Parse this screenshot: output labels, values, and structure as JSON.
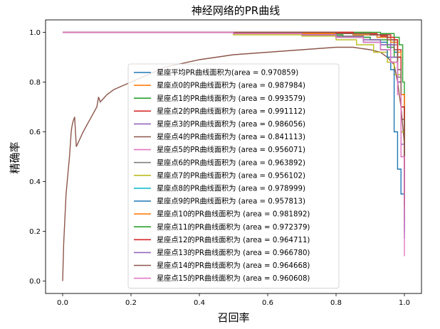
{
  "chart_data": {
    "type": "line",
    "title": "神经网络的PR曲线",
    "xlabel": "召回率",
    "ylabel": "精确率",
    "xlim": [
      -0.05,
      1.05
    ],
    "ylim": [
      -0.05,
      1.05
    ],
    "xticks": [
      "0.0",
      "0.2",
      "0.4",
      "0.6",
      "0.8",
      "1.0"
    ],
    "yticks": [
      "0.0",
      "0.2",
      "0.4",
      "0.6",
      "0.8",
      "1.0"
    ],
    "grid": false,
    "legend_position": "center",
    "series": [
      {
        "name": "星座平均PR曲线面积为(area = 0.970859)",
        "color": "#1f77b4",
        "x": [
          0,
          0.02,
          0.1,
          0.3,
          0.5,
          0.6,
          0.7,
          0.8,
          0.85,
          0.9,
          0.93,
          0.95,
          0.97,
          0.98,
          0.99,
          1.0
        ],
        "y": [
          1.0,
          1.0,
          1.0,
          1.0,
          1.0,
          0.995,
          0.99,
          0.985,
          0.98,
          0.97,
          0.96,
          0.95,
          0.92,
          0.8,
          0.6,
          0.17
        ]
      },
      {
        "name": "星座点0的PR曲线面积为 (area = 0.987984)",
        "color": "#ff7f0e",
        "x": [
          0,
          0.05,
          0.2,
          0.4,
          0.6,
          0.8,
          0.9,
          0.95,
          0.97,
          0.98,
          0.99,
          1.0
        ],
        "y": [
          1.0,
          1.0,
          1.0,
          1.0,
          1.0,
          1.0,
          0.99,
          0.98,
          0.96,
          0.9,
          0.7,
          0.3
        ]
      },
      {
        "name": "星座点1的PR曲线面积为 (area = 0.993579)",
        "color": "#2ca02c",
        "x": [
          0,
          0.1,
          0.3,
          0.5,
          0.7,
          0.85,
          0.93,
          0.97,
          0.985,
          0.995,
          1.0
        ],
        "y": [
          1.0,
          1.0,
          1.0,
          1.0,
          1.0,
          1.0,
          0.995,
          0.98,
          0.95,
          0.8,
          0.4
        ]
      },
      {
        "name": "星座点2的PR曲线面积为 (area = 0.991112)",
        "color": "#d62728",
        "x": [
          0,
          0.1,
          0.3,
          0.5,
          0.7,
          0.85,
          0.92,
          0.96,
          0.98,
          0.99,
          1.0
        ],
        "y": [
          1.0,
          1.0,
          1.0,
          1.0,
          1.0,
          0.995,
          0.99,
          0.97,
          0.93,
          0.75,
          0.35
        ]
      },
      {
        "name": "星座点3的PR曲线面积为 (area = 0.986056)",
        "color": "#9467bd",
        "x": [
          0,
          0.1,
          0.3,
          0.5,
          0.7,
          0.85,
          0.92,
          0.96,
          0.98,
          0.99,
          1.0
        ],
        "y": [
          1.0,
          1.0,
          1.0,
          1.0,
          0.995,
          0.99,
          0.98,
          0.95,
          0.9,
          0.7,
          0.3
        ]
      },
      {
        "name": "星座点4的PR曲线面积为 (area = 0.841113)",
        "color": "#8c564b",
        "x": [
          0,
          0.003,
          0.01,
          0.02,
          0.025,
          0.027,
          0.03,
          0.035,
          0.04,
          0.06,
          0.1,
          0.105,
          0.11,
          0.13,
          0.15,
          0.2,
          0.25,
          0.3,
          0.4,
          0.5,
          0.6,
          0.7,
          0.8,
          0.85,
          0.9,
          0.93,
          0.95,
          0.97,
          0.98,
          0.99,
          1.0
        ],
        "y": [
          0.0,
          0.15,
          0.35,
          0.5,
          0.6,
          0.62,
          0.64,
          0.66,
          0.54,
          0.6,
          0.7,
          0.74,
          0.72,
          0.75,
          0.77,
          0.8,
          0.83,
          0.86,
          0.89,
          0.91,
          0.92,
          0.93,
          0.94,
          0.94,
          0.93,
          0.92,
          0.9,
          0.87,
          0.8,
          0.7,
          0.55
        ]
      },
      {
        "name": "星座点5的PR曲线面积为 (area = 0.956071)",
        "color": "#e377c2",
        "x": [
          0,
          0.1,
          0.3,
          0.5,
          0.7,
          0.8,
          0.88,
          0.93,
          0.96,
          0.98,
          0.99,
          1.0
        ],
        "y": [
          1.0,
          1.0,
          1.0,
          0.995,
          0.99,
          0.98,
          0.96,
          0.93,
          0.88,
          0.8,
          0.5,
          0.1
        ]
      },
      {
        "name": "星座点6的PR曲线面积为 (area = 0.963892)",
        "color": "#7f7f7f",
        "x": [
          0,
          0.1,
          0.3,
          0.5,
          0.7,
          0.8,
          0.88,
          0.93,
          0.96,
          0.98,
          0.99,
          1.0
        ],
        "y": [
          1.0,
          1.0,
          1.0,
          0.995,
          0.99,
          0.985,
          0.97,
          0.95,
          0.9,
          0.82,
          0.6,
          0.25
        ]
      },
      {
        "name": "星座点7的PR曲线面积为 (area = 0.956102)",
        "color": "#bcbd22",
        "x": [
          0,
          0.1,
          0.3,
          0.5,
          0.7,
          0.8,
          0.86,
          0.91,
          0.95,
          0.97,
          0.99,
          1.0
        ],
        "y": [
          1.0,
          1.0,
          1.0,
          0.99,
          0.985,
          0.97,
          0.95,
          0.92,
          0.88,
          0.83,
          0.6,
          0.25
        ]
      },
      {
        "name": "星座点8的PR曲线面积为 (area = 0.978999)",
        "color": "#17becf",
        "x": [
          0,
          0.1,
          0.3,
          0.5,
          0.7,
          0.85,
          0.92,
          0.96,
          0.98,
          0.99,
          1.0
        ],
        "y": [
          1.0,
          1.0,
          1.0,
          1.0,
          0.995,
          0.99,
          0.98,
          0.96,
          0.9,
          0.7,
          0.3
        ]
      },
      {
        "name": "星座点9的PR曲线面积为 (area = 0.957813)",
        "color": "#1f77b4",
        "x": [
          0,
          0.1,
          0.3,
          0.5,
          0.7,
          0.8,
          0.88,
          0.93,
          0.95,
          0.96,
          0.97,
          0.98,
          0.99,
          1.0
        ],
        "y": [
          1.0,
          1.0,
          1.0,
          0.995,
          0.99,
          0.98,
          0.96,
          0.93,
          0.9,
          0.85,
          0.6,
          0.45,
          0.35,
          0.2
        ]
      },
      {
        "name": "星座点10的PR曲线面积为 (area = 0.981892)",
        "color": "#ff7f0e",
        "x": [
          0,
          0.1,
          0.3,
          0.5,
          0.7,
          0.85,
          0.92,
          0.96,
          0.98,
          0.99,
          1.0
        ],
        "y": [
          1.0,
          1.0,
          1.0,
          1.0,
          0.995,
          0.99,
          0.98,
          0.96,
          0.92,
          0.75,
          0.35
        ]
      },
      {
        "name": "星座点11的PR曲线面积为 (area = 0.972379)",
        "color": "#2ca02c",
        "x": [
          0,
          0.1,
          0.3,
          0.5,
          0.7,
          0.82,
          0.9,
          0.95,
          0.97,
          0.99,
          1.0
        ],
        "y": [
          1.0,
          1.0,
          1.0,
          0.995,
          0.99,
          0.98,
          0.97,
          0.94,
          0.9,
          0.7,
          0.3
        ]
      },
      {
        "name": "星座点12的PR曲线面积为 (area = 0.964711)",
        "color": "#d62728",
        "x": [
          0,
          0.1,
          0.3,
          0.5,
          0.7,
          0.85,
          0.9,
          0.93,
          0.95,
          0.97,
          0.98,
          0.99,
          1.0
        ],
        "y": [
          1.0,
          1.0,
          1.0,
          1.0,
          1.0,
          0.995,
          0.99,
          0.985,
          0.98,
          0.97,
          0.9,
          0.7,
          0.3
        ]
      },
      {
        "name": "星座点13的PR曲线面积为 (area = 0.966780)",
        "color": "#9467bd",
        "x": [
          0,
          0.1,
          0.3,
          0.5,
          0.7,
          0.8,
          0.88,
          0.93,
          0.96,
          0.98,
          0.99,
          1.0
        ],
        "y": [
          1.0,
          1.0,
          1.0,
          0.995,
          0.99,
          0.98,
          0.97,
          0.95,
          0.9,
          0.8,
          0.55,
          0.25
        ]
      },
      {
        "name": "星座点14的PR曲线面积为 (area = 0.964668)",
        "color": "#8c564b",
        "x": [
          0,
          0.1,
          0.3,
          0.5,
          0.7,
          0.8,
          0.9,
          0.95,
          0.97,
          0.98,
          0.99,
          1.0
        ],
        "y": [
          1.0,
          1.0,
          1.0,
          1.0,
          1.0,
          0.995,
          0.99,
          0.97,
          0.93,
          0.85,
          0.65,
          0.3
        ]
      },
      {
        "name": "星座点15的PR曲线面积为 (area = 0.960608)",
        "color": "#e377c2",
        "x": [
          0,
          0.1,
          0.3,
          0.5,
          0.7,
          0.8,
          0.88,
          0.93,
          0.96,
          0.98,
          0.99,
          1.0
        ],
        "y": [
          1.0,
          1.0,
          1.0,
          0.995,
          0.99,
          0.98,
          0.96,
          0.93,
          0.88,
          0.75,
          0.5,
          0.2
        ]
      }
    ]
  }
}
